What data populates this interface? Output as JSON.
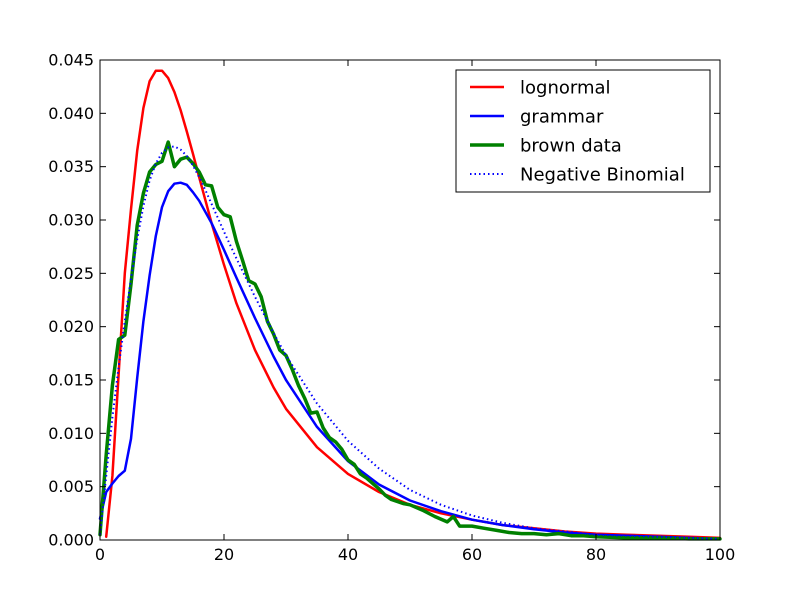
{
  "chart_data": {
    "type": "line",
    "title": "",
    "xlabel": "",
    "ylabel": "",
    "xlim": [
      0,
      100
    ],
    "ylim": [
      0,
      0.045
    ],
    "x_ticks": [
      0,
      20,
      40,
      60,
      80,
      100
    ],
    "x_tick_labels": [
      "0",
      "20",
      "40",
      "60",
      "80",
      "100"
    ],
    "y_ticks": [
      0,
      0.005,
      0.01,
      0.015,
      0.02,
      0.025,
      0.03,
      0.035,
      0.04,
      0.045
    ],
    "y_tick_labels": [
      "0.000",
      "0.005",
      "0.010",
      "0.015",
      "0.020",
      "0.025",
      "0.030",
      "0.035",
      "0.040",
      "0.045"
    ],
    "grid": false,
    "legend_position": "top-right",
    "series": [
      {
        "name": "lognormal",
        "color": "#ff0000",
        "style": "solid",
        "x": [
          1,
          2,
          3,
          4,
          5,
          6,
          7,
          8,
          9,
          10,
          11,
          12,
          13,
          14,
          15,
          16,
          18,
          20,
          22,
          25,
          28,
          30,
          35,
          40,
          45,
          50,
          55,
          60,
          65,
          70,
          75,
          80,
          85,
          90,
          95,
          100
        ],
        "values": [
          0.0003,
          0.006,
          0.0155,
          0.025,
          0.031,
          0.0365,
          0.0405,
          0.043,
          0.044,
          0.044,
          0.0433,
          0.042,
          0.0403,
          0.0383,
          0.0362,
          0.034,
          0.0297,
          0.0258,
          0.0222,
          0.0178,
          0.0143,
          0.0123,
          0.0087,
          0.0062,
          0.0045,
          0.0033,
          0.0025,
          0.0019,
          0.0014,
          0.0011,
          0.0008,
          0.0006,
          0.0005,
          0.0004,
          0.0003,
          0.0002
        ]
      },
      {
        "name": "grammar",
        "color": "#0000ff",
        "style": "solid",
        "x": [
          0,
          1,
          2,
          3,
          4,
          5,
          6,
          7,
          8,
          9,
          10,
          11,
          12,
          13,
          14,
          15,
          16,
          18,
          20,
          22,
          25,
          28,
          30,
          35,
          40,
          45,
          50,
          55,
          60,
          65,
          70,
          75,
          80,
          85,
          90,
          95,
          100
        ],
        "values": [
          0.002,
          0.0045,
          0.0053,
          0.006,
          0.0065,
          0.0095,
          0.0152,
          0.0205,
          0.0248,
          0.0285,
          0.0312,
          0.0327,
          0.0334,
          0.0335,
          0.0333,
          0.0326,
          0.0318,
          0.0297,
          0.0272,
          0.0246,
          0.0208,
          0.0172,
          0.015,
          0.0106,
          0.0074,
          0.0052,
          0.0037,
          0.0027,
          0.0019,
          0.0014,
          0.001,
          0.0007,
          0.0005,
          0.0004,
          0.0003,
          0.0002,
          0.0001
        ]
      },
      {
        "name": "brown data",
        "color": "#008000",
        "style": "solid",
        "x": [
          0,
          1,
          2,
          3,
          4,
          5,
          6,
          7,
          8,
          9,
          10,
          11,
          12,
          13,
          14,
          15,
          16,
          17,
          18,
          19,
          20,
          21,
          22,
          23,
          24,
          25,
          26,
          27,
          28,
          29,
          30,
          31,
          32,
          33,
          34,
          35,
          36,
          37,
          38,
          39,
          40,
          41,
          42,
          43,
          44,
          45,
          46,
          47,
          48,
          49,
          50,
          52,
          54,
          56,
          57,
          58,
          60,
          62,
          64,
          66,
          68,
          70,
          72,
          74,
          76,
          78,
          80,
          85,
          90,
          95,
          100
        ],
        "values": [
          0.0005,
          0.008,
          0.0145,
          0.0188,
          0.0192,
          0.024,
          0.0295,
          0.0325,
          0.0345,
          0.0352,
          0.0355,
          0.0373,
          0.035,
          0.0357,
          0.0359,
          0.0353,
          0.0345,
          0.0333,
          0.0332,
          0.0312,
          0.0305,
          0.0303,
          0.028,
          0.0262,
          0.0243,
          0.024,
          0.0228,
          0.0205,
          0.0193,
          0.0178,
          0.0173,
          0.016,
          0.0145,
          0.0133,
          0.0119,
          0.012,
          0.0105,
          0.0096,
          0.0092,
          0.0085,
          0.0075,
          0.0071,
          0.0062,
          0.0058,
          0.0053,
          0.0048,
          0.0042,
          0.0038,
          0.0036,
          0.0034,
          0.0033,
          0.0028,
          0.0022,
          0.0017,
          0.0022,
          0.0013,
          0.0013,
          0.0011,
          0.0009,
          0.0007,
          0.0006,
          0.0006,
          0.0005,
          0.0006,
          0.0004,
          0.0004,
          0.0003,
          0.0002,
          0.0002,
          0.0001,
          0.0001
        ]
      },
      {
        "name": "Negative Binomial",
        "color": "#0000ff",
        "style": "dotted",
        "x": [
          0,
          1,
          2,
          3,
          4,
          5,
          6,
          7,
          8,
          9,
          10,
          11,
          12,
          13,
          14,
          15,
          16,
          17,
          18,
          20,
          22,
          25,
          28,
          30,
          35,
          40,
          45,
          50,
          55,
          60,
          65,
          70,
          75,
          80,
          85,
          90,
          95,
          100
        ],
        "values": [
          0.0005,
          0.006,
          0.0115,
          0.0162,
          0.0205,
          0.0245,
          0.0282,
          0.0313,
          0.0337,
          0.0353,
          0.0363,
          0.0368,
          0.0369,
          0.0366,
          0.036,
          0.0351,
          0.034,
          0.0328,
          0.0315,
          0.0289,
          0.0264,
          0.0228,
          0.0194,
          0.0173,
          0.0128,
          0.0093,
          0.0067,
          0.0047,
          0.0033,
          0.0023,
          0.0016,
          0.0011,
          0.0008,
          0.0005,
          0.0004,
          0.0003,
          0.0002,
          0.0001
        ]
      }
    ]
  }
}
